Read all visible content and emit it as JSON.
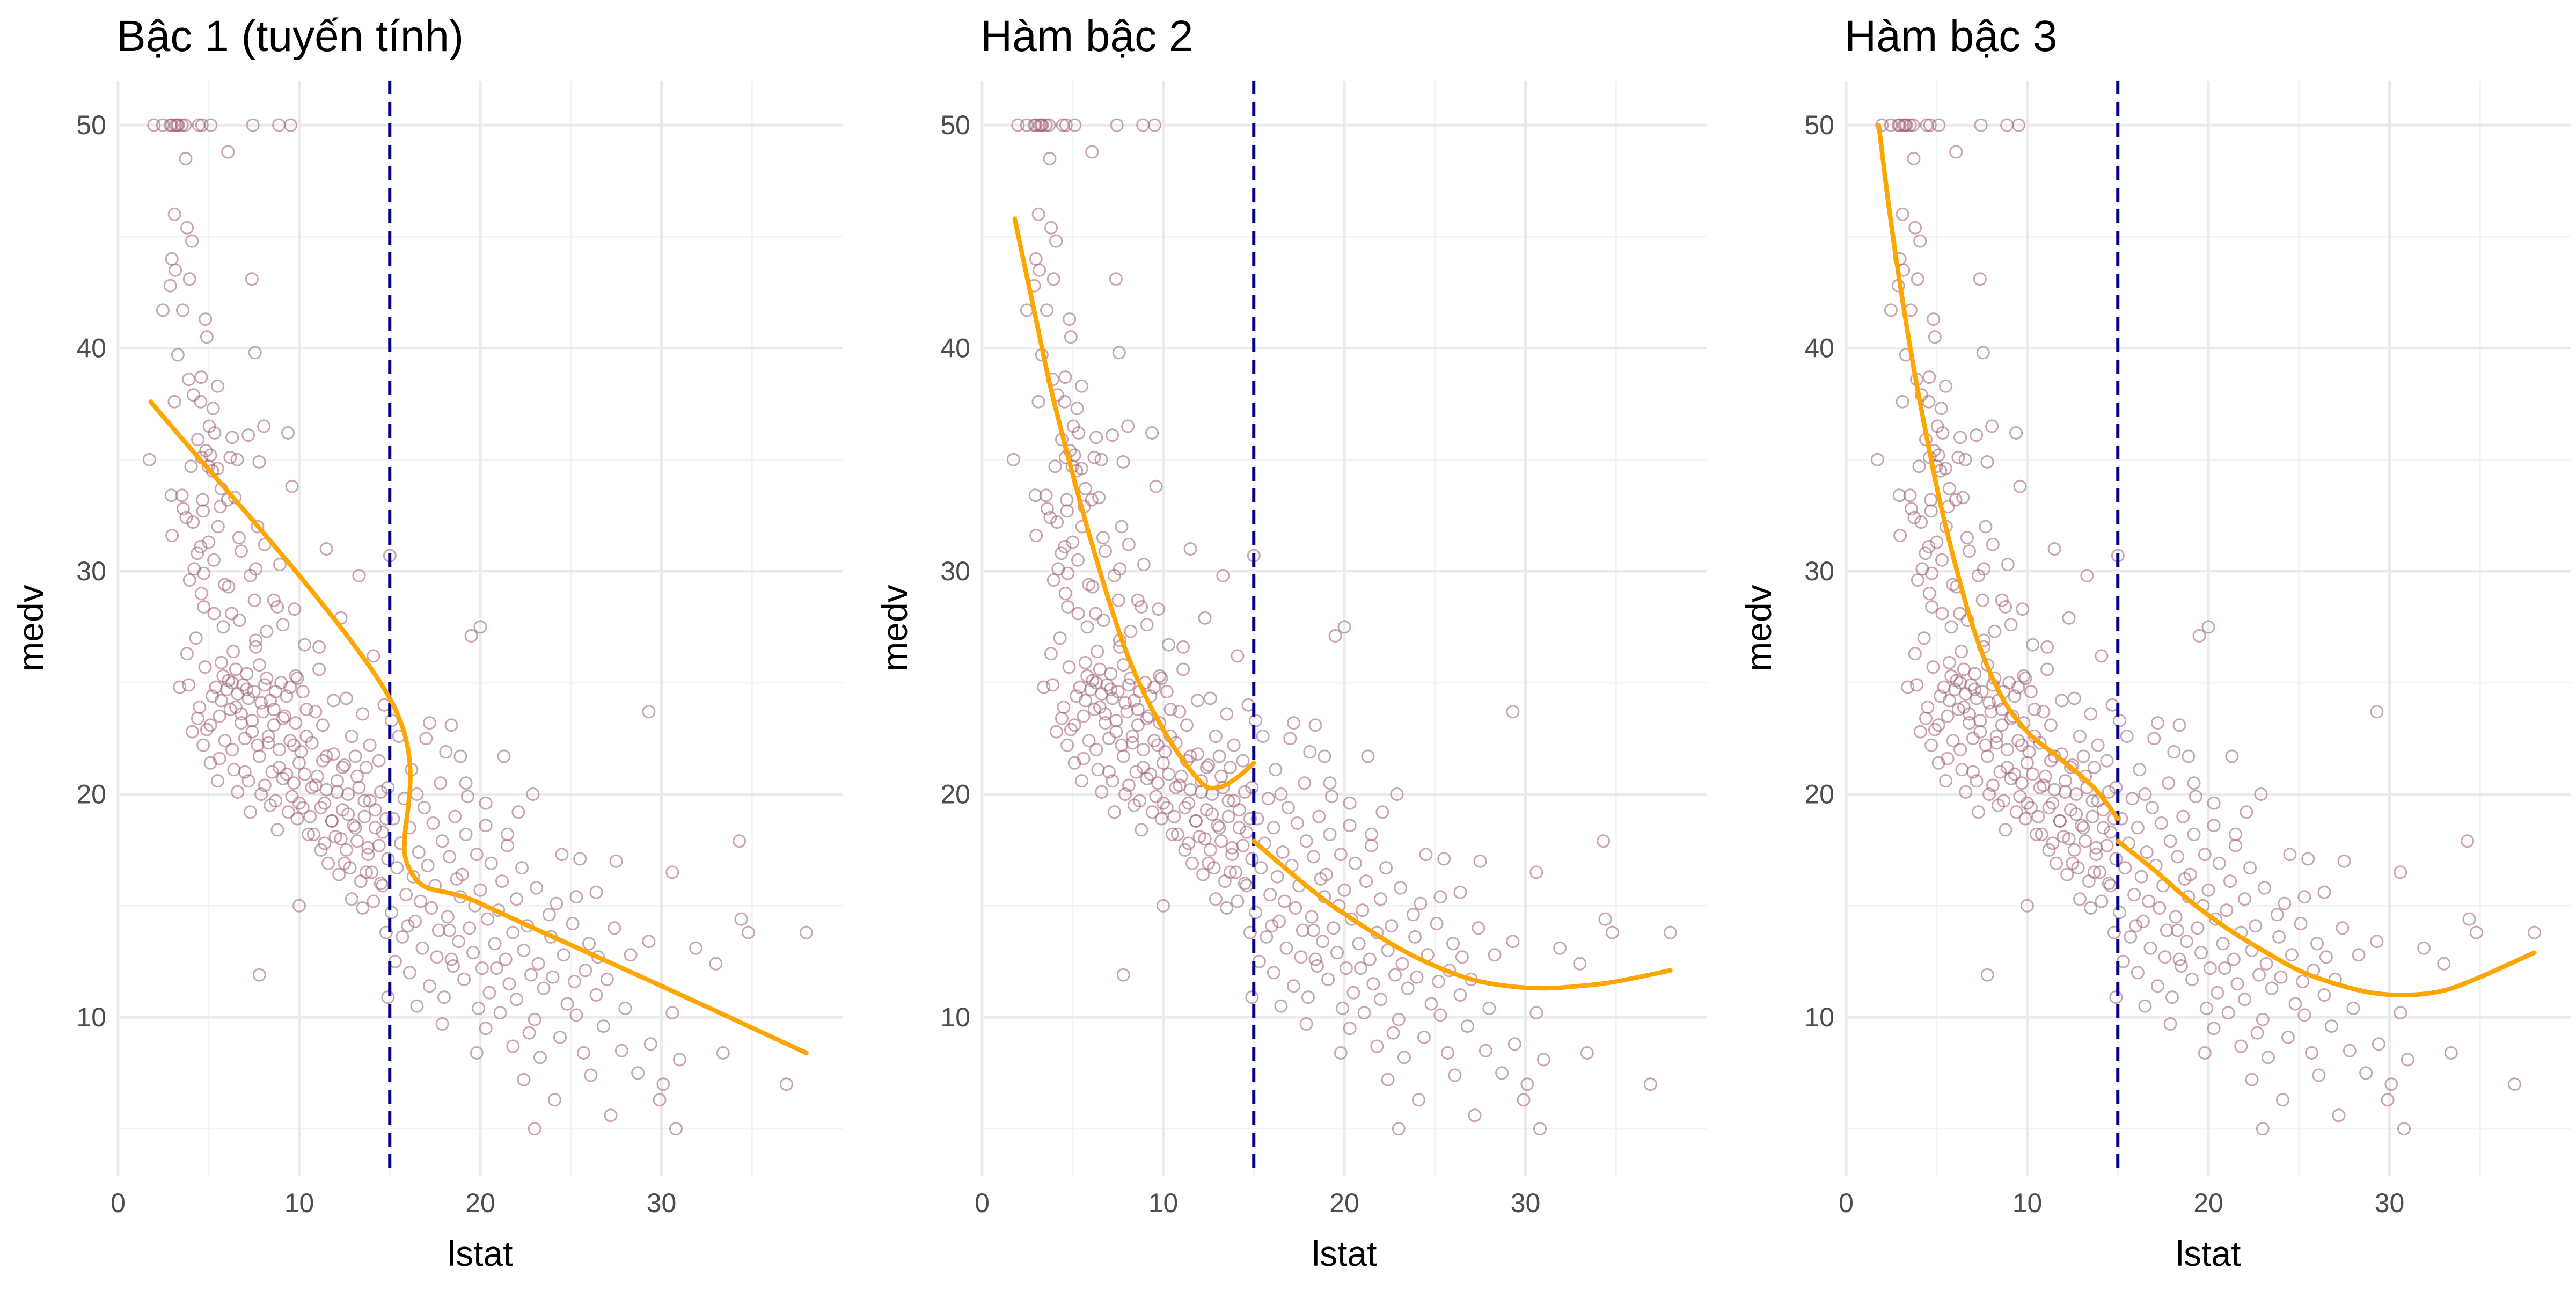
{
  "chart_data": [
    {
      "type": "scatter",
      "title": "Bậc 1 (tuyến tính)",
      "xlabel": "lstat",
      "ylabel": "medv",
      "xlim": [
        0,
        40
      ],
      "ylim": [
        2.9,
        52
      ],
      "xticks": [
        0,
        10,
        20,
        30
      ],
      "yticks": [
        10,
        20,
        30,
        40,
        50
      ],
      "knot": 15,
      "fit_segments": [
        [
          [
            1.8,
            37.6
          ],
          [
            15,
            24.3
          ],
          [
            16,
            16.8
          ],
          [
            20,
            15.1
          ],
          [
            30,
            11.4
          ],
          [
            38,
            8.4
          ]
        ]
      ],
      "fit_labels": [],
      "grid": true
    },
    {
      "type": "scatter",
      "title": "Hàm bậc 2",
      "xlabel": "lstat",
      "ylabel": "medv",
      "xlim": [
        0,
        40
      ],
      "ylim": [
        2.9,
        52
      ],
      "xticks": [
        0,
        10,
        20,
        30
      ],
      "yticks": [
        10,
        20,
        30,
        40,
        50
      ],
      "knot": 15,
      "fit_segments": [
        [
          [
            1.8,
            45.8
          ],
          [
            3,
            41.2
          ],
          [
            4,
            37.5
          ],
          [
            6,
            31.4
          ],
          [
            8,
            26.3
          ],
          [
            10,
            22.9
          ],
          [
            12,
            20.6
          ],
          [
            13,
            20.3
          ],
          [
            14,
            20.7
          ],
          [
            15,
            21.4
          ]
        ],
        [
          [
            15,
            17.9
          ],
          [
            17,
            16.5
          ],
          [
            19,
            15.2
          ],
          [
            21,
            14.1
          ],
          [
            23,
            13.1
          ],
          [
            25,
            12.3
          ],
          [
            27,
            11.7
          ],
          [
            29,
            11.4
          ],
          [
            31,
            11.3
          ],
          [
            33,
            11.4
          ],
          [
            35,
            11.6
          ],
          [
            38,
            12.1
          ]
        ]
      ],
      "fit_labels": [],
      "grid": true
    },
    {
      "type": "scatter",
      "title": "Hàm bậc 3",
      "xlabel": "lstat",
      "ylabel": "medv",
      "xlim": [
        0,
        40
      ],
      "ylim": [
        2.9,
        52
      ],
      "xticks": [
        0,
        10,
        20,
        30
      ],
      "yticks": [
        10,
        20,
        30,
        40,
        50
      ],
      "knot": 15,
      "fit_segments": [
        [
          [
            1.8,
            50.0
          ],
          [
            2.5,
            45.5
          ],
          [
            3.5,
            40.2
          ],
          [
            4.5,
            35.8
          ],
          [
            5.5,
            32.0
          ],
          [
            7,
            27.5
          ],
          [
            8.5,
            24.5
          ],
          [
            10,
            22.8
          ],
          [
            11.5,
            21.8
          ],
          [
            13,
            20.8
          ],
          [
            14,
            20.0
          ],
          [
            15,
            18.9
          ]
        ],
        [
          [
            15,
            17.9
          ],
          [
            17,
            16.6
          ],
          [
            19,
            15.2
          ],
          [
            21,
            14.0
          ],
          [
            23,
            13.0
          ],
          [
            25,
            12.1
          ],
          [
            27,
            11.5
          ],
          [
            29,
            11.1
          ],
          [
            31,
            11.0
          ],
          [
            33,
            11.2
          ],
          [
            35,
            11.8
          ],
          [
            38,
            12.9
          ]
        ]
      ],
      "fit_labels": [],
      "grid": true
    }
  ],
  "points": [
    [
      1.98,
      50
    ],
    [
      2.47,
      50
    ],
    [
      2.88,
      50
    ],
    [
      2.96,
      50
    ],
    [
      3.16,
      50
    ],
    [
      3.26,
      50
    ],
    [
      3.32,
      50
    ],
    [
      3.53,
      50
    ],
    [
      3.7,
      50
    ],
    [
      4.45,
      50
    ],
    [
      4.63,
      50
    ],
    [
      5.12,
      50
    ],
    [
      7.44,
      50
    ],
    [
      8.88,
      50
    ],
    [
      9.53,
      50
    ],
    [
      6.07,
      48.8
    ],
    [
      3.73,
      48.5
    ],
    [
      3.11,
      46
    ],
    [
      3.81,
      45.4
    ],
    [
      4.08,
      44.8
    ],
    [
      2.97,
      44
    ],
    [
      3.16,
      43.5
    ],
    [
      3.95,
      43.1
    ],
    [
      7.39,
      43.1
    ],
    [
      2.88,
      42.8
    ],
    [
      3.57,
      41.7
    ],
    [
      2.47,
      41.7
    ],
    [
      4.82,
      41.3
    ],
    [
      7.56,
      39.8
    ],
    [
      4.59,
      38.7
    ],
    [
      4.16,
      37.9
    ],
    [
      3.11,
      37.6
    ],
    [
      4.56,
      37.6
    ],
    [
      5.25,
      37.3
    ],
    [
      5.04,
      36.5
    ],
    [
      8.05,
      36.5
    ],
    [
      9.38,
      36.2
    ],
    [
      5.33,
      36.2
    ],
    [
      7.19,
      36.1
    ],
    [
      4.85,
      35.4
    ],
    [
      5.1,
      35.2
    ],
    [
      4.61,
      35.1
    ],
    [
      6.19,
      35.1
    ],
    [
      1.73,
      35
    ],
    [
      6.58,
      35
    ],
    [
      7.79,
      34.9
    ],
    [
      4.98,
      34.7
    ],
    [
      5.49,
      34.6
    ],
    [
      5.21,
      34.5
    ],
    [
      4.03,
      34.7
    ],
    [
      9.6,
      33.8
    ],
    [
      3.53,
      33.4
    ],
    [
      6.45,
      33.3
    ],
    [
      4.67,
      33.2
    ],
    [
      2.94,
      33.4
    ],
    [
      6.05,
      33.2
    ],
    [
      5.64,
      32.9
    ],
    [
      4.69,
      32.7
    ],
    [
      3.76,
      32.4
    ],
    [
      4.14,
      32.2
    ],
    [
      7.7,
      32
    ],
    [
      5.52,
      32
    ],
    [
      2.98,
      31.6
    ],
    [
      6.68,
      31.5
    ],
    [
      4.56,
      31.1
    ],
    [
      11.5,
      31
    ],
    [
      8.1,
      31.2
    ],
    [
      4.38,
      30.8
    ],
    [
      5.29,
      30.5
    ],
    [
      7.6,
      30.1
    ],
    [
      8.93,
      30.3
    ],
    [
      4.73,
      29.9
    ],
    [
      13.3,
      29.8
    ],
    [
      3.95,
      29.6
    ],
    [
      15.0,
      30.7
    ],
    [
      5.89,
      29.4
    ],
    [
      7.53,
      28.7
    ],
    [
      4.73,
      28.4
    ],
    [
      8.79,
      28.4
    ],
    [
      9.74,
      28.3
    ],
    [
      6.27,
      28.1
    ],
    [
      12.3,
      27.9
    ],
    [
      5.81,
      27.5
    ],
    [
      20,
      27.5
    ],
    [
      19.5,
      27.1
    ],
    [
      7.6,
      26.6
    ],
    [
      11.1,
      26.6
    ],
    [
      6.36,
      26.4
    ],
    [
      14.1,
      26.2
    ],
    [
      5.7,
      25.9
    ],
    [
      8.2,
      25.2
    ],
    [
      9.8,
      25.3
    ],
    [
      6.1,
      25.1
    ],
    [
      9.5,
      24.8
    ],
    [
      3.4,
      24.8
    ],
    [
      7.1,
      24.7
    ],
    [
      10.2,
      24.6
    ],
    [
      5.2,
      24.4
    ],
    [
      12.6,
      24.3
    ],
    [
      7.9,
      24.1
    ],
    [
      11.9,
      24.2
    ],
    [
      4.5,
      23.9
    ],
    [
      6.5,
      23.9
    ],
    [
      14.7,
      24.0
    ],
    [
      8.6,
      23.8
    ],
    [
      10.9,
      23.7
    ],
    [
      5.6,
      23.5
    ],
    [
      13.5,
      23.6
    ],
    [
      9.1,
      23.4
    ],
    [
      17.2,
      23.2
    ],
    [
      18.4,
      23.1
    ],
    [
      6.8,
      23.2
    ],
    [
      11.3,
      23.1
    ],
    [
      4.9,
      22.9
    ],
    [
      7.4,
      22.8
    ],
    [
      15.5,
      22.6
    ],
    [
      10.4,
      22.6
    ],
    [
      12.9,
      22.6
    ],
    [
      5.9,
      22.4
    ],
    [
      8.3,
      22.3
    ],
    [
      13.9,
      22.2
    ],
    [
      9.7,
      22.2
    ],
    [
      6.3,
      22.0
    ],
    [
      18.1,
      21.9
    ],
    [
      11.5,
      21.7
    ],
    [
      21.3,
      21.7
    ],
    [
      7.8,
      21.7
    ],
    [
      14.4,
      21.5
    ],
    [
      5.1,
      21.4
    ],
    [
      10.0,
      21.4
    ],
    [
      8.9,
      21.2
    ],
    [
      12.4,
      21.2
    ],
    [
      16.2,
      21.1
    ],
    [
      7.0,
      21.0
    ],
    [
      9.3,
      20.9
    ],
    [
      13.2,
      20.8
    ],
    [
      11.0,
      20.8
    ],
    [
      5.5,
      20.6
    ],
    [
      17.8,
      20.5
    ],
    [
      8.1,
      20.4
    ],
    [
      14.9,
      20.3
    ],
    [
      10.7,
      20.3
    ],
    [
      6.6,
      20.1
    ],
    [
      12.1,
      20.1
    ],
    [
      9.6,
      19.9
    ],
    [
      15.8,
      19.8
    ],
    [
      19.3,
      19.9
    ],
    [
      13.6,
      19.7
    ],
    [
      11.4,
      19.6
    ],
    [
      8.4,
      19.5
    ],
    [
      16.9,
      19.4
    ],
    [
      10.2,
      19.4
    ],
    [
      14.2,
      19.3
    ],
    [
      7.3,
      19.2
    ],
    [
      12.7,
      19.1
    ],
    [
      18.6,
      19.0
    ],
    [
      9.9,
      18.9
    ],
    [
      15.2,
      18.9
    ],
    [
      11.8,
      18.8
    ],
    [
      17.4,
      18.7
    ],
    [
      13.1,
      18.5
    ],
    [
      20.3,
      18.6
    ],
    [
      16.1,
      18.5
    ],
    [
      8.8,
      18.4
    ],
    [
      14.6,
      18.3
    ],
    [
      19.2,
      18.2
    ],
    [
      10.5,
      18.2
    ],
    [
      12.3,
      18.0
    ],
    [
      17.9,
      17.9
    ],
    [
      15.6,
      17.8
    ],
    [
      21.5,
      17.7
    ],
    [
      13.8,
      17.6
    ],
    [
      11.2,
      17.5
    ],
    [
      16.6,
      17.4
    ],
    [
      19.8,
      17.3
    ],
    [
      18.3,
      17.2
    ],
    [
      14.9,
      17.1
    ],
    [
      24.5,
      17.3
    ],
    [
      25.5,
      17.1
    ],
    [
      12.5,
      16.9
    ],
    [
      20.6,
      16.9
    ],
    [
      17.1,
      16.8
    ],
    [
      15.4,
      16.7
    ],
    [
      22.3,
      16.7
    ],
    [
      13.7,
      16.5
    ],
    [
      19.0,
      16.4
    ],
    [
      16.3,
      16.3
    ],
    [
      18.7,
      16.2
    ],
    [
      21.2,
      16.1
    ],
    [
      14.5,
      16.0
    ],
    [
      17.5,
      15.9
    ],
    [
      23.1,
      15.8
    ],
    [
      20.0,
      15.7
    ],
    [
      26.4,
      15.6
    ],
    [
      15.9,
      15.5
    ],
    [
      18.9,
      15.4
    ],
    [
      22.0,
      15.3
    ],
    [
      16.7,
      15.2
    ],
    [
      24.2,
      15.1
    ],
    [
      19.7,
      15.0
    ],
    [
      10.0,
      15.0
    ],
    [
      17.3,
      14.9
    ],
    [
      21.0,
      14.8
    ],
    [
      15.1,
      14.7
    ],
    [
      23.8,
      14.6
    ],
    [
      18.2,
      14.5
    ],
    [
      20.4,
      14.4
    ],
    [
      16.4,
      14.3
    ],
    [
      25.1,
      14.2
    ],
    [
      22.6,
      14.1
    ],
    [
      19.4,
      14.0
    ],
    [
      17.7,
      13.9
    ],
    [
      34.4,
      14.4
    ],
    [
      27.4,
      14.0
    ],
    [
      38.0,
      13.8
    ],
    [
      21.8,
      13.8
    ],
    [
      15.7,
      13.6
    ],
    [
      23.9,
      13.6
    ],
    [
      18.8,
      13.4
    ],
    [
      20.8,
      13.3
    ],
    [
      26.0,
      13.3
    ],
    [
      16.8,
      13.1
    ],
    [
      22.4,
      13.0
    ],
    [
      19.6,
      12.9
    ],
    [
      24.6,
      12.8
    ],
    [
      17.6,
      12.7
    ],
    [
      21.4,
      12.6
    ],
    [
      28.3,
      12.8
    ],
    [
      15.3,
      12.5
    ],
    [
      23.2,
      12.4
    ],
    [
      18.5,
      12.3
    ],
    [
      20.1,
      12.2
    ],
    [
      25.8,
      12.1
    ],
    [
      16.1,
      12.0
    ],
    [
      22.8,
      11.9
    ],
    [
      24.0,
      11.8
    ],
    [
      19.1,
      11.7
    ],
    [
      27.0,
      11.7
    ],
    [
      21.6,
      11.5
    ],
    [
      17.2,
      11.4
    ],
    [
      23.5,
      11.3
    ],
    [
      20.5,
      11.1
    ],
    [
      26.4,
      11.0
    ],
    [
      18.0,
      10.9
    ],
    [
      14.9,
      10.9
    ],
    [
      22.0,
      10.8
    ],
    [
      24.8,
      10.6
    ],
    [
      16.5,
      10.5
    ],
    [
      19.9,
      10.4
    ],
    [
      28.0,
      10.4
    ],
    [
      21.1,
      10.2
    ],
    [
      25.3,
      10.1
    ],
    [
      23.0,
      9.9
    ],
    [
      30.6,
      10.2
    ],
    [
      17.9,
      9.7
    ],
    [
      26.8,
      9.6
    ],
    [
      20.3,
      9.5
    ],
    [
      22.7,
      9.3
    ],
    [
      24.4,
      9.1
    ],
    [
      29.4,
      8.8
    ],
    [
      21.8,
      8.7
    ],
    [
      27.8,
      8.5
    ],
    [
      19.8,
      8.4
    ],
    [
      25.7,
      8.4
    ],
    [
      33.4,
      8.4
    ],
    [
      23.3,
      8.2
    ],
    [
      31.0,
      8.1
    ],
    [
      28.7,
      7.5
    ],
    [
      22.4,
      7.2
    ],
    [
      26.1,
      7.4
    ],
    [
      30.1,
      7.0
    ],
    [
      36.9,
      7.0
    ],
    [
      29.9,
      6.3
    ],
    [
      24.1,
      6.3
    ],
    [
      27.2,
      5.6
    ],
    [
      30.8,
      5.0
    ],
    [
      23.0,
      5.0
    ],
    [
      34.8,
      13.8
    ],
    [
      29.3,
      13.4
    ],
    [
      31.9,
      13.1
    ],
    [
      26.5,
      12.7
    ],
    [
      18.4,
      12.6
    ],
    [
      33.0,
      12.4
    ],
    [
      20.9,
      12.2
    ],
    [
      25.2,
      11.6
    ],
    [
      7.8,
      11.9
    ],
    [
      16.0,
      14.1
    ],
    [
      14.8,
      13.8
    ],
    [
      18.3,
      13.9
    ],
    [
      34.3,
      17.9
    ],
    [
      29.3,
      23.7
    ],
    [
      30.6,
      16.5
    ],
    [
      27.5,
      17.0
    ],
    [
      25.3,
      15.4
    ],
    [
      22.9,
      20.0
    ],
    [
      19.2,
      20.5
    ],
    [
      20.3,
      19.6
    ],
    [
      21.5,
      18.2
    ],
    [
      22.1,
      19.2
    ],
    [
      17.0,
      22.5
    ],
    [
      18.9,
      21.7
    ],
    [
      16.5,
      20.0
    ],
    [
      15.1,
      23.3
    ],
    [
      6.0,
      24.7
    ],
    [
      6.3,
      25.0
    ],
    [
      6.6,
      24.5
    ],
    [
      6.9,
      24.9
    ],
    [
      7.2,
      24.3
    ],
    [
      7.5,
      24.6
    ],
    [
      5.7,
      24.2
    ],
    [
      5.4,
      24.8
    ],
    [
      8.1,
      24.9
    ],
    [
      8.4,
      24.2
    ],
    [
      8.7,
      24.6
    ],
    [
      9.0,
      25.0
    ],
    [
      9.3,
      24.4
    ],
    [
      6.2,
      23.8
    ],
    [
      6.8,
      23.6
    ],
    [
      7.4,
      23.3
    ],
    [
      8.0,
      23.7
    ],
    [
      8.6,
      23.1
    ],
    [
      9.2,
      23.5
    ],
    [
      9.8,
      23.2
    ],
    [
      10.4,
      23.8
    ],
    [
      7.0,
      22.5
    ],
    [
      7.7,
      22.2
    ],
    [
      8.3,
      22.6
    ],
    [
      8.9,
      22.0
    ],
    [
      9.5,
      22.4
    ],
    [
      10.1,
      21.9
    ],
    [
      10.7,
      22.3
    ],
    [
      11.3,
      21.5
    ],
    [
      11.9,
      21.8
    ],
    [
      12.5,
      21.3
    ],
    [
      13.1,
      21.7
    ],
    [
      13.7,
      21.2
    ],
    [
      5.8,
      25.3
    ],
    [
      6.5,
      25.6
    ],
    [
      7.1,
      25.4
    ],
    [
      7.8,
      25.8
    ],
    [
      9.9,
      25.2
    ],
    [
      8.5,
      21.0
    ],
    [
      9.1,
      20.7
    ],
    [
      9.7,
      20.5
    ],
    [
      10.3,
      20.9
    ],
    [
      10.9,
      20.4
    ],
    [
      11.5,
      20.2
    ],
    [
      12.1,
      20.6
    ],
    [
      12.7,
      20.0
    ],
    [
      13.3,
      20.3
    ],
    [
      13.9,
      19.7
    ],
    [
      14.5,
      20.1
    ],
    [
      9.4,
      19.2
    ],
    [
      10.0,
      19.6
    ],
    [
      10.6,
      19.0
    ],
    [
      11.2,
      19.4
    ],
    [
      11.8,
      18.8
    ],
    [
      12.4,
      19.3
    ],
    [
      13.0,
      18.6
    ],
    [
      13.6,
      19.0
    ],
    [
      14.2,
      18.5
    ],
    [
      14.8,
      18.9
    ],
    [
      10.8,
      18.2
    ],
    [
      11.4,
      17.8
    ],
    [
      12.0,
      18.1
    ],
    [
      12.6,
      17.5
    ],
    [
      13.2,
      17.9
    ],
    [
      13.8,
      17.3
    ],
    [
      14.4,
      17.7
    ],
    [
      11.6,
      16.9
    ],
    [
      12.2,
      16.4
    ],
    [
      12.8,
      16.7
    ],
    [
      13.4,
      16.1
    ],
    [
      14.0,
      16.5
    ],
    [
      14.6,
      15.9
    ],
    [
      12.9,
      15.3
    ],
    [
      13.5,
      14.9
    ],
    [
      14.1,
      15.2
    ],
    [
      7.6,
      26.9
    ],
    [
      8.2,
      27.3
    ],
    [
      6.7,
      27.8
    ],
    [
      5.3,
      28.1
    ],
    [
      4.6,
      29.0
    ],
    [
      6.1,
      29.3
    ],
    [
      4.2,
      30.1
    ],
    [
      5.0,
      31.3
    ],
    [
      3.6,
      32.8
    ],
    [
      5.7,
      33.7
    ],
    [
      6.3,
      36.0
    ],
    [
      4.4,
      35.9
    ],
    [
      3.9,
      38.6
    ],
    [
      5.5,
      38.3
    ],
    [
      4.9,
      40.5
    ],
    [
      3.3,
      39.7
    ],
    [
      6.8,
      30.9
    ],
    [
      7.3,
      29.8
    ],
    [
      8.6,
      28.7
    ],
    [
      9.1,
      27.6
    ],
    [
      10.3,
      26.7
    ],
    [
      11.1,
      25.6
    ],
    [
      4.3,
      27.0
    ],
    [
      3.8,
      26.3
    ],
    [
      4.8,
      25.7
    ],
    [
      5.1,
      23.1
    ],
    [
      4.7,
      22.2
    ],
    [
      5.6,
      21.6
    ],
    [
      6.4,
      21.1
    ],
    [
      7.2,
      20.6
    ],
    [
      7.9,
      20.0
    ],
    [
      8.7,
      19.7
    ],
    [
      4.4,
      23.4
    ],
    [
      3.9,
      24.9
    ],
    [
      4.1,
      22.8
    ]
  ]
}
